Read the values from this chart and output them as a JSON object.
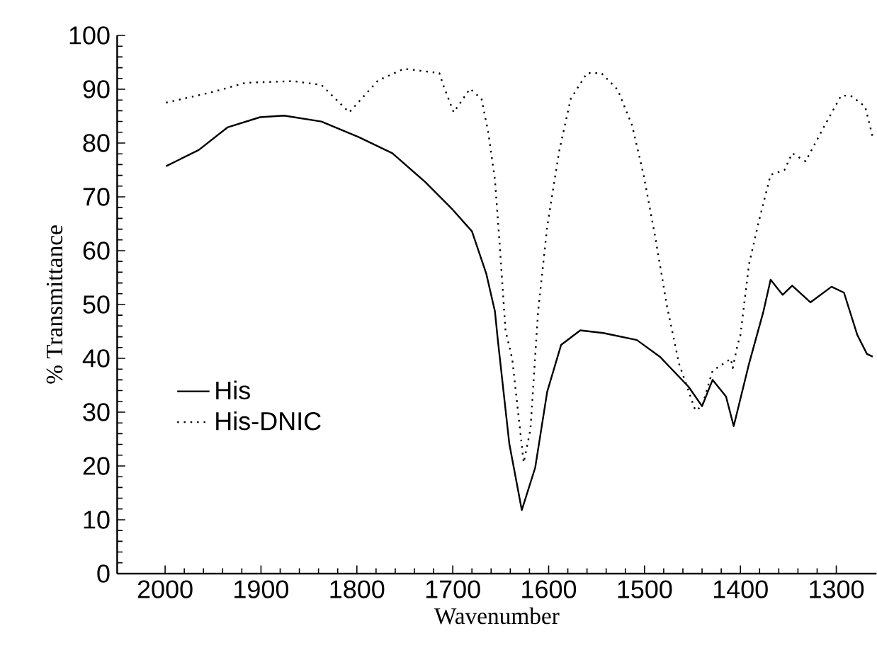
{
  "chart_data": {
    "type": "line",
    "xlabel": "Wavenumber",
    "ylabel": "% Transmittance",
    "xlim": [
      2050,
      1258
    ],
    "xticks": [
      2000,
      1900,
      1800,
      1700,
      1600,
      1500,
      1400,
      1300
    ],
    "ylim": [
      0,
      100
    ],
    "yticks": [
      0,
      10,
      20,
      30,
      40,
      50,
      60,
      70,
      80,
      90,
      100
    ],
    "legend": "center left",
    "grid": false,
    "marker": "none",
    "series": [
      {
        "name": "His",
        "color": "#000000",
        "line_style": "solid",
        "x": [
          1999,
          1965,
          1935,
          1901,
          1876,
          1837,
          1798,
          1763,
          1729,
          1700,
          1680,
          1665,
          1656,
          1653,
          1641,
          1628,
          1614,
          1601.5,
          1587,
          1567,
          1543,
          1508,
          1484,
          1454,
          1440,
          1429,
          1415,
          1407,
          1391,
          1376,
          1368.5,
          1356,
          1346,
          1327,
          1305,
          1292,
          1278,
          1268,
          1262
        ],
        "values": [
          75.7,
          78.7,
          82.9,
          84.8,
          85.1,
          84.0,
          81.1,
          78.1,
          72.8,
          67.6,
          63.6,
          55.7,
          48.7,
          43.4,
          24.1,
          11.8,
          19.7,
          33.8,
          42.5,
          45.2,
          44.7,
          43.4,
          40.3,
          34.7,
          31.1,
          36.0,
          32.9,
          27.4,
          39.0,
          48.7,
          54.6,
          51.8,
          53.5,
          50.4,
          53.3,
          52.2,
          44.3,
          40.8,
          40.3
        ]
      },
      {
        "name": "His-DNIC",
        "color": "#000000",
        "line_style": "dotted",
        "x": [
          1999,
          1950,
          1916,
          1866,
          1837,
          1808,
          1778,
          1751,
          1714,
          1710,
          1699,
          1682,
          1670,
          1663,
          1656,
          1651,
          1645,
          1638,
          1626,
          1619,
          1611,
          1601.5,
          1589,
          1577,
          1560,
          1545,
          1528,
          1513,
          1501,
          1489,
          1476.5,
          1464,
          1447,
          1440,
          1429,
          1410,
          1408,
          1403,
          1400,
          1391,
          1381,
          1368.5,
          1354,
          1346,
          1332,
          1312,
          1295,
          1285,
          1270,
          1262
        ],
        "values": [
          87.5,
          89.5,
          91.2,
          91.5,
          90.8,
          85.7,
          91.6,
          93.8,
          93.0,
          90.8,
          85.7,
          90.1,
          88.2,
          82.0,
          73.2,
          61.0,
          45.2,
          39.9,
          20.6,
          26.8,
          48.7,
          64.5,
          78.5,
          88.2,
          93.0,
          93.0,
          89.9,
          83.3,
          74.1,
          62.7,
          49.6,
          39.0,
          30.3,
          31.1,
          37.7,
          39.9,
          38.2,
          42.5,
          44.3,
          57.5,
          65.3,
          74.1,
          75.0,
          78.1,
          76.6,
          83.3,
          88.8,
          88.8,
          86.8,
          81.1
        ]
      }
    ]
  }
}
